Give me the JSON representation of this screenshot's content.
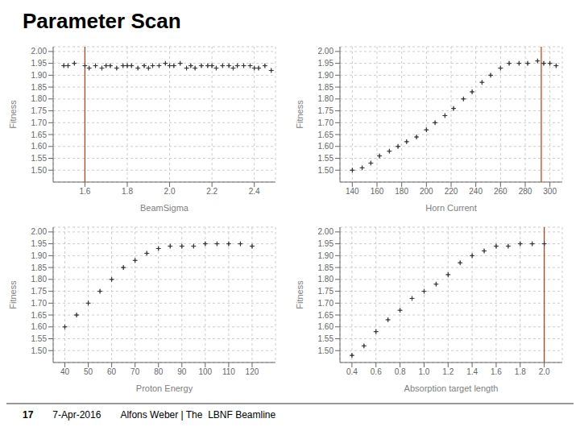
{
  "title": "Parameter Scan",
  "annotations": [
    "17",
    "7-Apr-2016",
    "Alfons Weber | The  LBNF Beamline"
  ],
  "chart_data": [
    {
      "type": "scatter",
      "xlabel": "BeamSigma",
      "ylabel": "Fitness",
      "color": "#333333",
      "marker": "plus",
      "grid": true,
      "xlim": [
        1.45,
        2.5
      ],
      "ylim": [
        1.45,
        2.02
      ],
      "xticks": [
        1.6,
        1.8,
        {
          "value": 2.0,
          "label": "2.0"
        },
        2.2,
        2.4
      ],
      "yticks": [
        {
          "value": 1.5,
          "label": "1.50"
        },
        1.55,
        {
          "value": 1.6,
          "label": "1.60"
        },
        1.65,
        {
          "value": 1.7,
          "label": "1.70"
        },
        1.75,
        {
          "value": 1.8,
          "label": "1.80"
        },
        1.85,
        {
          "value": 1.9,
          "label": "1.90"
        },
        1.95,
        {
          "value": 2.0,
          "label": "2.00"
        }
      ],
      "vline": {
        "value": 1.6,
        "color": "#cc3300"
      },
      "x_error": 0.00735,
      "y_error": 0.008,
      "x": [
        1.5,
        1.52,
        1.55,
        1.6,
        1.62,
        1.65,
        1.68,
        1.7,
        1.72,
        1.75,
        1.78,
        1.8,
        1.82,
        1.85,
        1.88,
        1.9,
        1.92,
        1.95,
        1.98,
        2.0,
        2.02,
        2.05,
        2.08,
        2.1,
        2.12,
        2.15,
        2.18,
        2.2,
        2.22,
        2.25,
        2.28,
        2.3,
        2.32,
        2.35,
        2.38,
        2.4,
        2.42,
        2.45,
        2.48
      ],
      "values": [
        1.94,
        1.94,
        1.95,
        1.94,
        1.93,
        1.94,
        1.93,
        1.94,
        1.94,
        1.93,
        1.94,
        1.94,
        1.94,
        1.93,
        1.94,
        1.93,
        1.94,
        1.94,
        1.95,
        1.94,
        1.94,
        1.95,
        1.93,
        1.94,
        1.93,
        1.94,
        1.94,
        1.94,
        1.93,
        1.94,
        1.94,
        1.93,
        1.94,
        1.94,
        1.94,
        1.93,
        1.93,
        1.94,
        1.92
      ]
    },
    {
      "type": "scatter",
      "xlabel": "Horn Current",
      "ylabel": "Fitness",
      "color": "#333333",
      "marker": "plus",
      "grid": true,
      "xlim": [
        130,
        310
      ],
      "ylim": [
        1.45,
        2.02
      ],
      "xticks": [
        140,
        160,
        180,
        200,
        220,
        240,
        260,
        280,
        300
      ],
      "yticks": [
        {
          "value": 1.5,
          "label": "1.50"
        },
        1.55,
        {
          "value": 1.6,
          "label": "1.60"
        },
        1.65,
        {
          "value": 1.7,
          "label": "1.70"
        },
        1.75,
        {
          "value": 1.8,
          "label": "1.80"
        },
        1.85,
        {
          "value": 1.9,
          "label": "1.90"
        },
        1.95,
        {
          "value": 2.0,
          "label": "2.00"
        }
      ],
      "vline": {
        "value": 293,
        "color": "#cc3300"
      },
      "x_error": 1.26,
      "y_error": 0.008,
      "x": [
        140,
        148,
        155,
        162,
        170,
        177,
        184,
        192,
        200,
        207,
        215,
        222,
        230,
        237,
        245,
        252,
        260,
        267,
        275,
        282,
        290,
        295,
        300,
        305
      ],
      "values": [
        1.5,
        1.51,
        1.53,
        1.56,
        1.58,
        1.6,
        1.62,
        1.64,
        1.67,
        1.7,
        1.73,
        1.76,
        1.8,
        1.83,
        1.87,
        1.9,
        1.93,
        1.95,
        1.95,
        1.95,
        1.96,
        1.95,
        1.95,
        1.94
      ]
    },
    {
      "type": "scatter",
      "xlabel": "Proton Energy",
      "ylabel": "Fitness",
      "color": "#333333",
      "marker": "plus",
      "grid": true,
      "xlim": [
        35,
        130
      ],
      "ylim": [
        1.45,
        2.02
      ],
      "xticks": [
        40,
        50,
        60,
        70,
        80,
        90,
        100,
        110,
        120
      ],
      "yticks": [
        {
          "value": 1.5,
          "label": "1.50"
        },
        1.55,
        {
          "value": 1.6,
          "label": "1.60"
        },
        1.65,
        {
          "value": 1.7,
          "label": "1.70"
        },
        1.75,
        {
          "value": 1.8,
          "label": "1.80"
        },
        1.85,
        {
          "value": 1.9,
          "label": "1.90"
        },
        1.95,
        {
          "value": 2.0,
          "label": "2.00"
        }
      ],
      "x_error": 0.665,
      "y_error": 0.008,
      "x": [
        40,
        45,
        50,
        55,
        60,
        65,
        70,
        75,
        80,
        85,
        90,
        95,
        100,
        105,
        110,
        115,
        120
      ],
      "values": [
        1.6,
        1.65,
        1.7,
        1.75,
        1.8,
        1.85,
        1.88,
        1.91,
        1.93,
        1.94,
        1.94,
        1.94,
        1.95,
        1.95,
        1.95,
        1.95,
        1.94
      ]
    },
    {
      "type": "scatter",
      "xlabel": "Absorption target length",
      "ylabel": "Fitness",
      "color": "#333333",
      "marker": "plus",
      "grid": true,
      "xlim": [
        0.3,
        2.15
      ],
      "ylim": [
        1.45,
        2.02
      ],
      "xticks": [
        0.4,
        0.6,
        0.8,
        {
          "value": 1.0,
          "label": "1.0"
        },
        1.2,
        1.4,
        1.6,
        1.8,
        {
          "value": 2.0,
          "label": "2.0"
        }
      ],
      "yticks": [
        {
          "value": 1.5,
          "label": "1.50"
        },
        1.55,
        {
          "value": 1.6,
          "label": "1.60"
        },
        1.65,
        {
          "value": 1.7,
          "label": "1.70"
        },
        1.75,
        {
          "value": 1.8,
          "label": "1.80"
        },
        1.85,
        {
          "value": 1.9,
          "label": "1.90"
        },
        1.95,
        {
          "value": 2.0,
          "label": "2.00"
        }
      ],
      "vline": {
        "value": 2.0,
        "color": "#cc3300"
      },
      "x_error": 0.01295,
      "y_error": 0.008,
      "x": [
        0.4,
        0.5,
        0.6,
        0.7,
        0.8,
        0.9,
        1.0,
        1.1,
        1.2,
        1.3,
        1.4,
        1.5,
        1.6,
        1.7,
        1.8,
        1.9,
        2.0
      ],
      "values": [
        1.48,
        1.52,
        1.58,
        1.63,
        1.67,
        1.72,
        1.75,
        1.78,
        1.82,
        1.87,
        1.9,
        1.92,
        1.94,
        1.94,
        1.95,
        1.95,
        1.95
      ]
    }
  ]
}
